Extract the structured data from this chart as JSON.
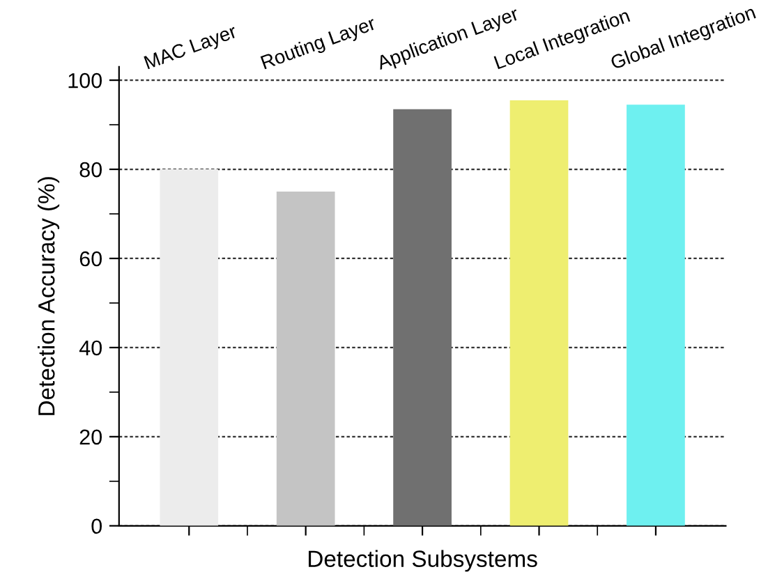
{
  "chart_data": {
    "type": "bar",
    "xlabel": "Detection Subsystems",
    "ylabel": "Detection Accuracy (%)",
    "categories": [
      "MAC Layer",
      "Routing Layer",
      "Application Layer",
      "Local Integration",
      "Global Integration"
    ],
    "values": [
      80,
      75,
      93.5,
      95.5,
      94.5
    ],
    "colors": [
      "#ececec",
      "#c4c4c4",
      "#707070",
      "#eeee70",
      "#6ef0f0"
    ],
    "ylim": [
      0,
      103
    ],
    "yticks": [
      0,
      20,
      40,
      60,
      80,
      100
    ],
    "grid": "y"
  }
}
